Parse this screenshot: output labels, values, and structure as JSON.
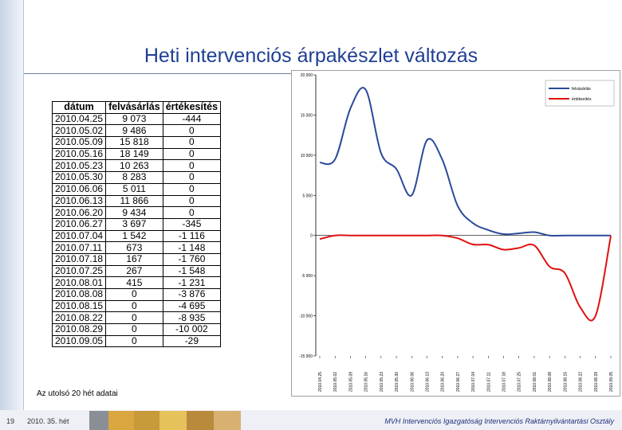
{
  "title": "Heti intervenciós árpakészlet változás",
  "table": {
    "headers": [
      "dátum",
      "felvásárlás",
      "értékesítés"
    ],
    "rows": [
      [
        "2010.04.25",
        "9 073",
        "-444"
      ],
      [
        "2010.05.02",
        "9 486",
        "0"
      ],
      [
        "2010.05.09",
        "15 818",
        "0"
      ],
      [
        "2010.05.16",
        "18 149",
        "0"
      ],
      [
        "2010.05.23",
        "10 263",
        "0"
      ],
      [
        "2010.05.30",
        "8 283",
        "0"
      ],
      [
        "2010.06.06",
        "5 011",
        "0"
      ],
      [
        "2010.06.13",
        "11 866",
        "0"
      ],
      [
        "2010.06.20",
        "9 434",
        "0"
      ],
      [
        "2010.06.27",
        "3 697",
        "-345"
      ],
      [
        "2010.07.04",
        "1 542",
        "-1 116"
      ],
      [
        "2010.07.11",
        "673",
        "-1 148"
      ],
      [
        "2010.07.18",
        "167",
        "-1 760"
      ],
      [
        "2010.07.25",
        "267",
        "-1 548"
      ],
      [
        "2010.08.01",
        "415",
        "-1 231"
      ],
      [
        "2010.08.08",
        "0",
        "-3 876"
      ],
      [
        "2010.08.15",
        "0",
        "-4 695"
      ],
      [
        "2010.08.22",
        "0",
        "-8 935"
      ],
      [
        "2010.08.29",
        "0",
        "-10 002"
      ],
      [
        "2010.09.05",
        "0",
        "-29"
      ]
    ]
  },
  "chart_data": {
    "type": "line",
    "x": [
      "2010.04.25",
      "2010.05.02",
      "2010.05.09",
      "2010.05.16",
      "2010.05.23",
      "2010.05.30",
      "2010.06.06",
      "2010.06.13",
      "2010.06.20",
      "2010.06.27",
      "2010.07.04",
      "2010.07.11",
      "2010.07.18",
      "2010.07.25",
      "2010.08.01",
      "2010.08.08",
      "2010.08.15",
      "2010.08.22",
      "2010.08.29",
      "2010.09.05"
    ],
    "series": [
      {
        "name": "felvásárlás",
        "color": "#2a4a9a",
        "values": [
          9073,
          9486,
          15818,
          18149,
          10263,
          8283,
          5011,
          11866,
          9434,
          3697,
          1542,
          673,
          167,
          267,
          415,
          0,
          0,
          0,
          0,
          0
        ]
      },
      {
        "name": "értékesítés",
        "color": "#e01010",
        "values": [
          -444,
          0,
          0,
          0,
          0,
          0,
          0,
          0,
          0,
          -345,
          -1116,
          -1148,
          -1760,
          -1548,
          -1231,
          -3876,
          -4695,
          -8935,
          -10002,
          -29
        ]
      }
    ],
    "yticks": [
      "20 000",
      "15 000",
      "10 000",
      "5 000",
      "0",
      "-5 000",
      "-10 000",
      "-15 000"
    ],
    "ylim": [
      -15000,
      20000
    ],
    "legend": "top-right",
    "grid": false
  },
  "footnote": "Az utolsó 20 hét adatai",
  "footer": {
    "page": "19",
    "week": "2010. 35. hét",
    "org": "MVH Intervenciós Igazgatóság Intervenciós Raktárnyilvántartási Osztály"
  }
}
